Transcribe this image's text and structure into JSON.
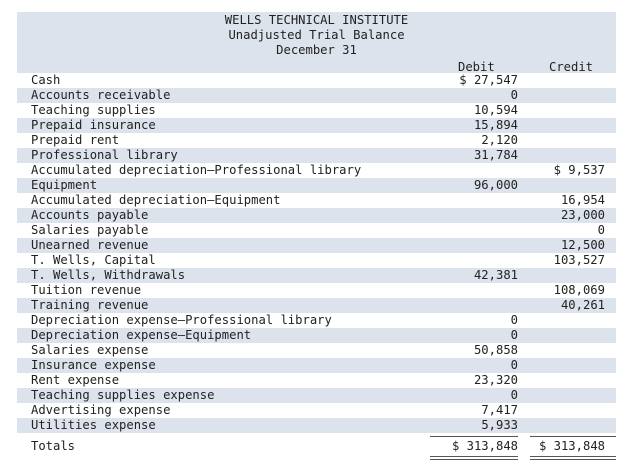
{
  "header": {
    "company": "WELLS TECHNICAL INSTITUTE",
    "report": "Unadjusted Trial Balance",
    "date": "December 31",
    "debit_label": "Debit",
    "credit_label": "Credit"
  },
  "rows": [
    {
      "account": "Cash",
      "debit": "$ 27,547",
      "credit": ""
    },
    {
      "account": "Accounts receivable",
      "debit": "0",
      "credit": ""
    },
    {
      "account": "Teaching supplies",
      "debit": "10,594",
      "credit": ""
    },
    {
      "account": "Prepaid insurance",
      "debit": "15,894",
      "credit": ""
    },
    {
      "account": "Prepaid rent",
      "debit": "2,120",
      "credit": ""
    },
    {
      "account": "Professional library",
      "debit": "31,784",
      "credit": ""
    },
    {
      "account": "Accumulated depreciation—Professional library",
      "debit": "",
      "credit": "$ 9,537"
    },
    {
      "account": "Equipment",
      "debit": "96,000",
      "credit": ""
    },
    {
      "account": "Accumulated depreciation—Equipment",
      "debit": "",
      "credit": "16,954"
    },
    {
      "account": "Accounts payable",
      "debit": "",
      "credit": "23,000"
    },
    {
      "account": "Salaries payable",
      "debit": "",
      "credit": "0"
    },
    {
      "account": "Unearned revenue",
      "debit": "",
      "credit": "12,500"
    },
    {
      "account": "T. Wells, Capital",
      "debit": "",
      "credit": "103,527"
    },
    {
      "account": "T. Wells, Withdrawals",
      "debit": "42,381",
      "credit": ""
    },
    {
      "account": "Tuition revenue",
      "debit": "",
      "credit": "108,069"
    },
    {
      "account": "Training revenue",
      "debit": "",
      "credit": "40,261"
    },
    {
      "account": "Depreciation expense—Professional library",
      "debit": "0",
      "credit": ""
    },
    {
      "account": "Depreciation expense—Equipment",
      "debit": "0",
      "credit": ""
    },
    {
      "account": "Salaries expense",
      "debit": "50,858",
      "credit": ""
    },
    {
      "account": "Insurance expense",
      "debit": "0",
      "credit": ""
    },
    {
      "account": "Rent expense",
      "debit": "23,320",
      "credit": ""
    },
    {
      "account": "Teaching supplies expense",
      "debit": "0",
      "credit": ""
    },
    {
      "account": "Advertising expense",
      "debit": "7,417",
      "credit": ""
    },
    {
      "account": "Utilities expense",
      "debit": "5,933",
      "credit": ""
    }
  ],
  "totals": {
    "label": "Totals",
    "debit": "$ 313,848",
    "credit": "$ 313,848"
  }
}
